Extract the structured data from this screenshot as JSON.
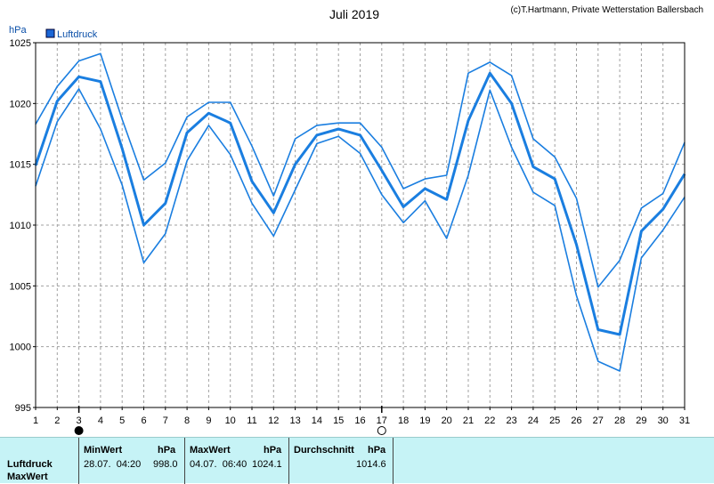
{
  "header": {
    "title": "Juli 2019",
    "copyright": "(c)T.Hartmann, Private Wetterstation Ballersbach",
    "unit": "hPa",
    "legend_label": "Luftdruck"
  },
  "colors": {
    "series": "#1a7ee0",
    "legend_box": "#1a66d6",
    "grid": "#a0a0a0",
    "stats_bg": "#c6f3f6"
  },
  "chart_data": {
    "type": "line",
    "title": "Juli 2019",
    "ylabel": "hPa",
    "ylim": [
      995,
      1025
    ],
    "yticks": [
      995,
      1000,
      1005,
      1010,
      1015,
      1020,
      1025
    ],
    "x": [
      1,
      2,
      3,
      4,
      5,
      6,
      7,
      8,
      9,
      10,
      11,
      12,
      13,
      14,
      15,
      16,
      17,
      18,
      19,
      20,
      21,
      22,
      23,
      24,
      25,
      26,
      27,
      28,
      29,
      30,
      31
    ],
    "x_markers": [
      {
        "x": 3,
        "symbol": "filled-circle"
      },
      {
        "x": 17,
        "symbol": "open-circle"
      }
    ],
    "grid": true,
    "legend": "top-left",
    "series": [
      {
        "name": "Luftdruck",
        "role": "average",
        "values": [
          1014.9,
          1020.2,
          1022.2,
          1021.8,
          1016.3,
          1010.0,
          1011.8,
          1017.6,
          1019.2,
          1018.4,
          1013.6,
          1011.0,
          1015.0,
          1017.4,
          1017.9,
          1017.4,
          1014.5,
          1011.5,
          1013.0,
          1012.1,
          1018.6,
          1022.5,
          1020.0,
          1014.8,
          1013.8,
          1008.4,
          1001.4,
          1001.0,
          1009.5,
          1011.3,
          1014.2
        ]
      },
      {
        "role": "max",
        "values": [
          1018.3,
          1021.4,
          1023.5,
          1024.1,
          1018.7,
          1013.7,
          1015.1,
          1018.9,
          1020.1,
          1020.1,
          1016.5,
          1012.4,
          1017.1,
          1018.2,
          1018.4,
          1018.4,
          1016.4,
          1013.0,
          1013.8,
          1014.1,
          1022.5,
          1023.4,
          1022.3,
          1017.1,
          1015.6,
          1012.2,
          1004.9,
          1007.1,
          1011.4,
          1012.6,
          1016.8
        ]
      },
      {
        "role": "min",
        "values": [
          1013.2,
          1018.5,
          1021.2,
          1017.9,
          1013.3,
          1006.9,
          1009.3,
          1015.3,
          1018.2,
          1015.8,
          1011.8,
          1009.1,
          1012.9,
          1016.7,
          1017.3,
          1015.9,
          1012.5,
          1010.2,
          1012.0,
          1008.9,
          1014.1,
          1021.1,
          1016.4,
          1012.7,
          1011.6,
          1004.2,
          998.8,
          998.0,
          1007.3,
          1009.6,
          1012.3
        ]
      }
    ]
  },
  "stats": {
    "row_label": "Luftdruck",
    "row_label_2": "MaxWert",
    "min": {
      "header": "MinWert",
      "unit": "hPa",
      "datetime": "28.07.  04:20",
      "value": "998.0"
    },
    "max": {
      "header": "MaxWert",
      "unit": "hPa",
      "datetime": "04.07.  06:40",
      "value": "1024.1"
    },
    "avg": {
      "header": "Durchschnitt",
      "unit": "hPa",
      "value": "1014.6"
    }
  }
}
